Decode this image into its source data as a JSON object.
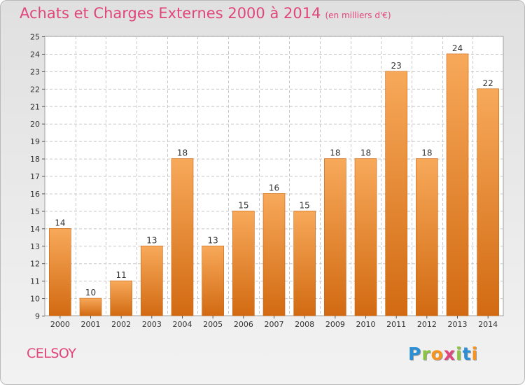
{
  "title": "Achats et Charges Externes 2000 à 2014",
  "unit": "(en milliers d'€)",
  "commune": "CELSOY",
  "logo": {
    "letters": [
      "P",
      "r",
      "o",
      "x",
      "i",
      "t",
      "i"
    ],
    "colors": [
      "#2a8fd6",
      "#8bc53f",
      "#f7941d",
      "#e0457b",
      "#8bc53f",
      "#2a8fd6",
      "#f7941d"
    ]
  },
  "colors": {
    "bar_light": "#f7a95a",
    "bar_dark": "#d26a12",
    "bar_edge": "#c86410",
    "title": "#e0457b",
    "grid": "#c8c8c8"
  },
  "chart_data": {
    "type": "bar",
    "categories": [
      "2000",
      "2001",
      "2002",
      "2003",
      "2004",
      "2005",
      "2006",
      "2007",
      "2008",
      "2009",
      "2010",
      "2011",
      "2012",
      "2013",
      "2014"
    ],
    "values": [
      14,
      10,
      11,
      13,
      18,
      13,
      15,
      16,
      15,
      18,
      18,
      23,
      18,
      24,
      22
    ],
    "y_ticks": [
      "9",
      "10",
      "11",
      "12",
      "13",
      "14",
      "15",
      "16",
      "17",
      "18",
      "19",
      "20",
      "21",
      "22",
      "23",
      "24",
      "25"
    ],
    "ylim": [
      9,
      25
    ],
    "grid": true
  }
}
